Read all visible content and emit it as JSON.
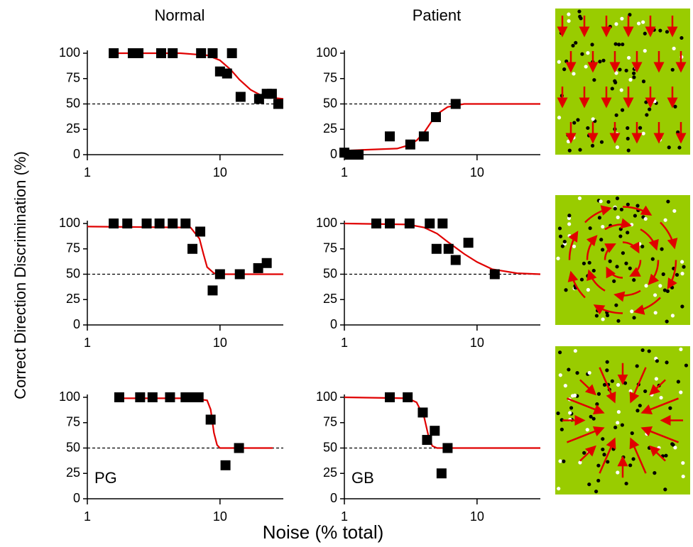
{
  "y_label": "Correct Direction Discrimination (%)",
  "x_label": "Noise  (% total)",
  "chart_data": [
    {
      "type": "scatter",
      "title": "Normal",
      "log_x": true,
      "xlim": [
        1,
        30
      ],
      "ylim": [
        0,
        100
      ],
      "xticks": [
        1,
        10
      ],
      "yticks": [
        0,
        25,
        50,
        75,
        100
      ],
      "color": "#000000",
      "fit_color": "#e00000",
      "chance": 50,
      "x": [
        1.58,
        2.2,
        2.43,
        3.6,
        4.4,
        7.2,
        8.8,
        10,
        11.3,
        12.3,
        14.3,
        19.7,
        22.5,
        24.6,
        27.5
      ],
      "values": [
        100,
        100,
        100,
        100,
        100,
        100,
        100,
        82,
        80,
        100,
        57,
        55,
        60,
        60,
        50
      ],
      "fit": {
        "x": [
          1.5,
          5,
          8,
          10,
          12,
          14,
          17,
          20,
          25,
          30
        ],
        "values": [
          100,
          100,
          98,
          93,
          84,
          74,
          64,
          59,
          56,
          55
        ]
      }
    },
    {
      "type": "scatter",
      "title": "Patient",
      "log_x": true,
      "xlim": [
        1,
        30
      ],
      "ylim": [
        0,
        100
      ],
      "xticks": [
        1,
        10
      ],
      "yticks": [
        0,
        25,
        50,
        75,
        100
      ],
      "color": "#000000",
      "fit_color": "#e00000",
      "chance": 50,
      "x": [
        1.0,
        1.1,
        1.28,
        2.2,
        3.14,
        3.97,
        4.9,
        6.9
      ],
      "values": [
        2,
        0,
        0,
        18,
        10,
        18,
        37,
        50
      ],
      "fit": {
        "x": [
          1,
          2.5,
          3,
          3.5,
          4,
          4.5,
          5,
          6,
          8,
          30
        ],
        "values": [
          4,
          6,
          9,
          14,
          22,
          32,
          40,
          47,
          50,
          50
        ]
      }
    },
    {
      "type": "scatter",
      "log_x": true,
      "xlim": [
        1,
        30
      ],
      "ylim": [
        0,
        100
      ],
      "xticks": [
        1,
        10
      ],
      "yticks": [
        0,
        25,
        50,
        75,
        100
      ],
      "color": "#000000",
      "fit_color": "#e00000",
      "chance": 50,
      "x": [
        1.58,
        2.0,
        2.8,
        3.5,
        4.4,
        5.5,
        6.2,
        7.1,
        8.8,
        10,
        14.1,
        19.4,
        22.5
      ],
      "values": [
        100,
        100,
        100,
        100,
        100,
        100,
        75,
        92,
        34,
        50,
        50,
        56,
        61
      ],
      "fit": {
        "x": [
          1,
          6,
          7,
          7.5,
          8,
          9,
          10,
          30
        ],
        "values": [
          97,
          96,
          85,
          70,
          57,
          51,
          50,
          50
        ]
      }
    },
    {
      "type": "scatter",
      "log_x": true,
      "xlim": [
        1,
        30
      ],
      "ylim": [
        0,
        100
      ],
      "xticks": [
        1,
        10
      ],
      "yticks": [
        0,
        25,
        50,
        75,
        100
      ],
      "color": "#000000",
      "fit_color": "#e00000",
      "chance": 50,
      "x": [
        1.74,
        2.2,
        3.1,
        4.4,
        4.95,
        5.5,
        6.1,
        6.9,
        8.6,
        13.6
      ],
      "values": [
        100,
        100,
        100,
        100,
        75,
        100,
        75,
        64,
        81,
        50
      ],
      "fit": {
        "x": [
          1,
          3,
          4,
          5,
          6,
          8,
          10,
          13,
          20,
          30
        ],
        "values": [
          100,
          99,
          96,
          90,
          82,
          70,
          62,
          55,
          51,
          50
        ]
      }
    },
    {
      "type": "scatter",
      "annotation": "PG",
      "log_x": true,
      "xlim": [
        1,
        30
      ],
      "ylim": [
        0,
        100
      ],
      "xticks": [
        1,
        10
      ],
      "yticks": [
        0,
        25,
        50,
        75,
        100
      ],
      "color": "#000000",
      "fit_color": "#e00000",
      "chance": 50,
      "x": [
        1.74,
        2.5,
        3.1,
        4.2,
        5.5,
        6.1,
        6.9,
        8.5,
        11.0,
        13.9
      ],
      "values": [
        100,
        100,
        100,
        100,
        100,
        100,
        100,
        78,
        33,
        50
      ],
      "fit": {
        "x": [
          1.74,
          6,
          8,
          8.5,
          9,
          9.5,
          10,
          25
        ],
        "values": [
          99,
          99,
          97,
          88,
          65,
          53,
          50,
          50
        ]
      }
    },
    {
      "type": "scatter",
      "annotation": "GB",
      "log_x": true,
      "xlim": [
        1,
        30
      ],
      "ylim": [
        0,
        100
      ],
      "xticks": [
        1,
        10
      ],
      "yticks": [
        0,
        25,
        50,
        75,
        100
      ],
      "color": "#000000",
      "fit_color": "#e00000",
      "chance": 50,
      "x": [
        2.2,
        3.0,
        3.9,
        4.2,
        4.8,
        5.4,
        6.0
      ],
      "values": [
        100,
        100,
        85,
        58,
        67,
        25,
        50
      ],
      "fit": {
        "x": [
          1,
          3,
          3.5,
          4,
          4.3,
          4.6,
          5,
          30
        ],
        "values": [
          100,
          99,
          95,
          80,
          62,
          52,
          50,
          50
        ]
      }
    }
  ]
}
